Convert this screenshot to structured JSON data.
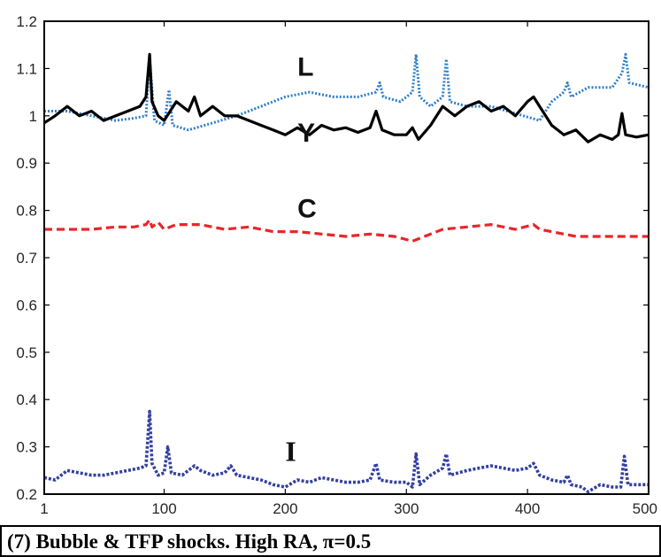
{
  "chart_data": {
    "type": "line",
    "title": "",
    "caption": "(7) Bubble & TFP shocks. High RA, π=0.5",
    "xlabel": "",
    "ylabel": "",
    "xlim": [
      1,
      500
    ],
    "ylim": [
      0.2,
      1.2
    ],
    "x_ticks": [
      1,
      100,
      200,
      300,
      400,
      500
    ],
    "x_tick_labels": [
      "1",
      "100",
      "200",
      "300",
      "400",
      "500"
    ],
    "y_ticks": [
      0.2,
      0.3,
      0.4,
      0.5,
      0.6,
      0.7,
      0.8,
      0.9,
      1,
      1.1,
      1.2
    ],
    "y_tick_labels": [
      "0.2",
      "0.3",
      "0.4",
      "0.5",
      "0.6",
      "0.7",
      "0.8",
      "0.9",
      "1",
      "1.1",
      "1.2"
    ],
    "grid": false,
    "series": [
      {
        "name": "L",
        "color": "#2e7fc9",
        "style": "dotted",
        "label_at": [
          210,
          1.085
        ],
        "points": [
          [
            1,
            1.01
          ],
          [
            20,
            1.01
          ],
          [
            40,
            1.0
          ],
          [
            60,
            0.99
          ],
          [
            75,
            0.995
          ],
          [
            85,
            1.0
          ],
          [
            88,
            1.12
          ],
          [
            92,
            0.99
          ],
          [
            100,
            0.98
          ],
          [
            104,
            1.055
          ],
          [
            107,
            0.98
          ],
          [
            120,
            0.97
          ],
          [
            140,
            0.985
          ],
          [
            160,
            1.0
          ],
          [
            180,
            1.02
          ],
          [
            200,
            1.04
          ],
          [
            220,
            1.05
          ],
          [
            240,
            1.04
          ],
          [
            260,
            1.04
          ],
          [
            275,
            1.05
          ],
          [
            278,
            1.07
          ],
          [
            281,
            1.04
          ],
          [
            295,
            1.03
          ],
          [
            305,
            1.05
          ],
          [
            308,
            1.13
          ],
          [
            311,
            1.04
          ],
          [
            320,
            1.02
          ],
          [
            330,
            1.04
          ],
          [
            333,
            1.12
          ],
          [
            336,
            1.03
          ],
          [
            350,
            1.02
          ],
          [
            370,
            1.02
          ],
          [
            390,
            1.005
          ],
          [
            410,
            0.99
          ],
          [
            420,
            1.03
          ],
          [
            430,
            1.05
          ],
          [
            433,
            1.07
          ],
          [
            436,
            1.04
          ],
          [
            450,
            1.06
          ],
          [
            470,
            1.06
          ],
          [
            478,
            1.09
          ],
          [
            481,
            1.13
          ],
          [
            484,
            1.07
          ],
          [
            500,
            1.06
          ]
        ]
      },
      {
        "name": "Y",
        "color": "#000000",
        "style": "solid",
        "label_at": [
          210,
          0.945
        ],
        "points": [
          [
            1,
            0.985
          ],
          [
            10,
            1.0
          ],
          [
            20,
            1.02
          ],
          [
            30,
            1.0
          ],
          [
            40,
            1.01
          ],
          [
            50,
            0.99
          ],
          [
            60,
            1.0
          ],
          [
            70,
            1.01
          ],
          [
            80,
            1.02
          ],
          [
            85,
            1.04
          ],
          [
            88,
            1.13
          ],
          [
            90,
            1.03
          ],
          [
            95,
            1.0
          ],
          [
            100,
            0.99
          ],
          [
            110,
            1.03
          ],
          [
            120,
            1.01
          ],
          [
            125,
            1.04
          ],
          [
            130,
            1.0
          ],
          [
            140,
            1.02
          ],
          [
            150,
            1.0
          ],
          [
            160,
            1.0
          ],
          [
            170,
            0.99
          ],
          [
            180,
            0.98
          ],
          [
            190,
            0.97
          ],
          [
            200,
            0.96
          ],
          [
            210,
            0.975
          ],
          [
            220,
            0.96
          ],
          [
            230,
            0.98
          ],
          [
            240,
            0.97
          ],
          [
            250,
            0.975
          ],
          [
            260,
            0.965
          ],
          [
            270,
            0.975
          ],
          [
            275,
            1.01
          ],
          [
            280,
            0.97
          ],
          [
            290,
            0.96
          ],
          [
            300,
            0.96
          ],
          [
            305,
            0.975
          ],
          [
            310,
            0.95
          ],
          [
            320,
            0.98
          ],
          [
            330,
            1.02
          ],
          [
            340,
            1.0
          ],
          [
            350,
            1.02
          ],
          [
            360,
            1.03
          ],
          [
            370,
            1.01
          ],
          [
            380,
            1.02
          ],
          [
            390,
            1.0
          ],
          [
            400,
            1.03
          ],
          [
            405,
            1.04
          ],
          [
            410,
            1.02
          ],
          [
            420,
            0.98
          ],
          [
            430,
            0.96
          ],
          [
            440,
            0.97
          ],
          [
            450,
            0.945
          ],
          [
            460,
            0.96
          ],
          [
            470,
            0.95
          ],
          [
            475,
            0.96
          ],
          [
            478,
            1.005
          ],
          [
            481,
            0.96
          ],
          [
            490,
            0.955
          ],
          [
            500,
            0.96
          ]
        ]
      },
      {
        "name": "C",
        "color": "#e8262a",
        "style": "dashed",
        "label_at": [
          210,
          0.785
        ],
        "points": [
          [
            1,
            0.76
          ],
          [
            20,
            0.76
          ],
          [
            40,
            0.76
          ],
          [
            60,
            0.765
          ],
          [
            75,
            0.765
          ],
          [
            85,
            0.77
          ],
          [
            88,
            0.78
          ],
          [
            90,
            0.765
          ],
          [
            95,
            0.775
          ],
          [
            100,
            0.76
          ],
          [
            110,
            0.77
          ],
          [
            130,
            0.77
          ],
          [
            150,
            0.76
          ],
          [
            170,
            0.765
          ],
          [
            190,
            0.755
          ],
          [
            210,
            0.755
          ],
          [
            230,
            0.75
          ],
          [
            250,
            0.745
          ],
          [
            270,
            0.75
          ],
          [
            290,
            0.745
          ],
          [
            305,
            0.735
          ],
          [
            315,
            0.745
          ],
          [
            330,
            0.76
          ],
          [
            350,
            0.765
          ],
          [
            370,
            0.77
          ],
          [
            390,
            0.76
          ],
          [
            405,
            0.77
          ],
          [
            410,
            0.76
          ],
          [
            420,
            0.755
          ],
          [
            440,
            0.745
          ],
          [
            460,
            0.745
          ],
          [
            480,
            0.745
          ],
          [
            500,
            0.745
          ]
        ]
      },
      {
        "name": "I",
        "color": "#3340a0",
        "style": "dashdot",
        "label_at": [
          200,
          0.27
        ],
        "points": [
          [
            1,
            0.235
          ],
          [
            10,
            0.23
          ],
          [
            20,
            0.25
          ],
          [
            30,
            0.245
          ],
          [
            40,
            0.24
          ],
          [
            50,
            0.24
          ],
          [
            60,
            0.245
          ],
          [
            70,
            0.25
          ],
          [
            80,
            0.255
          ],
          [
            85,
            0.26
          ],
          [
            88,
            0.375
          ],
          [
            90,
            0.265
          ],
          [
            95,
            0.24
          ],
          [
            100,
            0.245
          ],
          [
            103,
            0.3
          ],
          [
            106,
            0.245
          ],
          [
            115,
            0.24
          ],
          [
            125,
            0.26
          ],
          [
            130,
            0.25
          ],
          [
            140,
            0.24
          ],
          [
            150,
            0.245
          ],
          [
            155,
            0.26
          ],
          [
            160,
            0.24
          ],
          [
            170,
            0.235
          ],
          [
            180,
            0.23
          ],
          [
            190,
            0.22
          ],
          [
            200,
            0.215
          ],
          [
            210,
            0.23
          ],
          [
            220,
            0.225
          ],
          [
            230,
            0.235
          ],
          [
            240,
            0.23
          ],
          [
            250,
            0.225
          ],
          [
            260,
            0.225
          ],
          [
            270,
            0.23
          ],
          [
            275,
            0.265
          ],
          [
            278,
            0.23
          ],
          [
            290,
            0.225
          ],
          [
            300,
            0.225
          ],
          [
            305,
            0.215
          ],
          [
            308,
            0.285
          ],
          [
            311,
            0.22
          ],
          [
            320,
            0.24
          ],
          [
            330,
            0.255
          ],
          [
            333,
            0.285
          ],
          [
            336,
            0.24
          ],
          [
            350,
            0.25
          ],
          [
            360,
            0.255
          ],
          [
            370,
            0.26
          ],
          [
            380,
            0.255
          ],
          [
            390,
            0.25
          ],
          [
            400,
            0.255
          ],
          [
            405,
            0.265
          ],
          [
            410,
            0.24
          ],
          [
            420,
            0.23
          ],
          [
            430,
            0.225
          ],
          [
            433,
            0.24
          ],
          [
            436,
            0.22
          ],
          [
            445,
            0.215
          ],
          [
            450,
            0.205
          ],
          [
            460,
            0.22
          ],
          [
            470,
            0.215
          ],
          [
            477,
            0.215
          ],
          [
            480,
            0.28
          ],
          [
            483,
            0.22
          ],
          [
            490,
            0.22
          ],
          [
            500,
            0.22
          ]
        ]
      }
    ]
  }
}
